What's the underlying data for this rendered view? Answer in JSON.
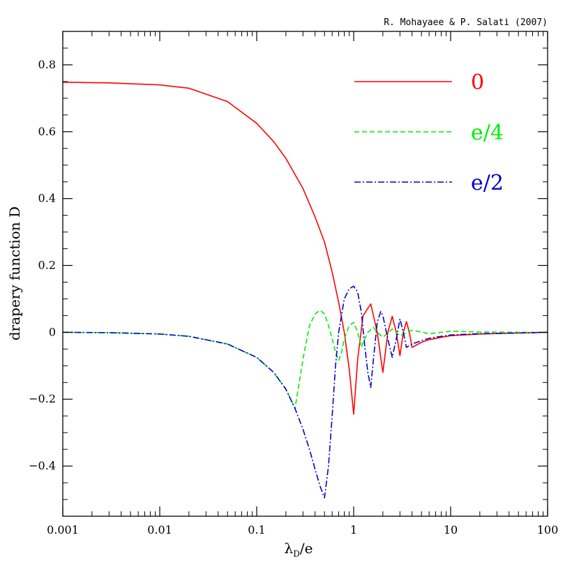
{
  "chart_data": {
    "type": "line",
    "credit": "R. Mohayaee & P. Salati (2007)",
    "xlabel": {
      "main": "λ",
      "sub": "D",
      "rest": "/e"
    },
    "ylabel": "drapery function D",
    "xscale": "log",
    "xlim": [
      0.001,
      100
    ],
    "ylim": [
      -0.55,
      0.9
    ],
    "xticks": [
      {
        "value": 0.001,
        "label": "0.001"
      },
      {
        "value": 0.01,
        "label": "0.01"
      },
      {
        "value": 0.1,
        "label": "0.1"
      },
      {
        "value": 1,
        "label": "1"
      },
      {
        "value": 10,
        "label": "10"
      },
      {
        "value": 100,
        "label": "100"
      }
    ],
    "yticks": [
      {
        "value": 0.8,
        "label": "0.8"
      },
      {
        "value": 0.6,
        "label": "0.6"
      },
      {
        "value": 0.4,
        "label": "0.4"
      },
      {
        "value": 0.2,
        "label": "0.2"
      },
      {
        "value": 0,
        "label": "0"
      },
      {
        "value": -0.2,
        "label": "−0.2"
      },
      {
        "value": -0.4,
        "label": "−0.4"
      }
    ],
    "grid": false,
    "legend_position": "top-right",
    "series": [
      {
        "name": "0",
        "color": "#ff0000",
        "dash": "solid",
        "x": [
          0.001,
          0.003,
          0.01,
          0.02,
          0.05,
          0.1,
          0.15,
          0.2,
          0.3,
          0.4,
          0.5,
          0.6,
          0.7,
          0.8,
          0.9,
          1.0,
          1.1,
          1.25,
          1.5,
          1.75,
          2.0,
          2.25,
          2.5,
          2.75,
          3.0,
          3.25,
          3.5,
          3.75,
          4.0,
          5.0,
          6.0,
          8.0,
          10.0,
          20.0,
          50.0,
          100.0
        ],
        "y": [
          0.748,
          0.746,
          0.74,
          0.73,
          0.69,
          0.625,
          0.57,
          0.52,
          0.43,
          0.345,
          0.27,
          0.18,
          0.09,
          0.0,
          -0.11,
          -0.245,
          -0.08,
          0.05,
          0.085,
          0.0,
          -0.12,
          0.0,
          0.048,
          0.0,
          -0.07,
          0.0,
          0.032,
          0.0,
          -0.045,
          -0.03,
          -0.022,
          -0.015,
          -0.01,
          -0.005,
          -0.002,
          0.0
        ]
      },
      {
        "name": "e/4",
        "color": "#00ee00",
        "dash": "dashed",
        "x": [
          0.001,
          0.003,
          0.01,
          0.02,
          0.05,
          0.1,
          0.15,
          0.2,
          0.25,
          0.251,
          0.3,
          0.35,
          0.4,
          0.45,
          0.5,
          0.55,
          0.6,
          0.65,
          0.7,
          0.75,
          0.8,
          0.9,
          1.0,
          1.1,
          1.2,
          1.25,
          1.4,
          1.6,
          1.75,
          2.0,
          2.5,
          3.0,
          4.0,
          6.0,
          10.0,
          20.0,
          50.0,
          100.0
        ],
        "y": [
          0.0,
          -0.001,
          -0.005,
          -0.012,
          -0.035,
          -0.075,
          -0.12,
          -0.17,
          -0.23,
          -0.22,
          -0.08,
          0.02,
          0.055,
          0.066,
          0.055,
          0.02,
          -0.02,
          -0.06,
          -0.085,
          -0.06,
          -0.02,
          0.02,
          0.03,
          0.0,
          -0.045,
          -0.03,
          0.0,
          0.015,
          0.0,
          -0.015,
          0.01,
          -0.01,
          0.006,
          -0.004,
          0.003,
          0.001,
          0.0,
          0.0
        ]
      },
      {
        "name": "e/2",
        "color": "#0000cc",
        "dash": "dashdot",
        "x": [
          0.001,
          0.003,
          0.01,
          0.02,
          0.05,
          0.1,
          0.15,
          0.2,
          0.25,
          0.3,
          0.35,
          0.4,
          0.45,
          0.5,
          0.55,
          0.6,
          0.65,
          0.7,
          0.8,
          0.9,
          1.0,
          1.1,
          1.2,
          1.3,
          1.4,
          1.5,
          1.6,
          1.75,
          1.9,
          2.0,
          2.25,
          2.5,
          2.75,
          3.0,
          3.25,
          3.5,
          4.0,
          5.0,
          6.0,
          8.0,
          10.0,
          20.0,
          50.0,
          100.0
        ],
        "y": [
          0.0,
          -0.001,
          -0.005,
          -0.012,
          -0.035,
          -0.075,
          -0.12,
          -0.17,
          -0.23,
          -0.29,
          -0.35,
          -0.41,
          -0.46,
          -0.495,
          -0.4,
          -0.25,
          -0.1,
          0.0,
          0.1,
          0.13,
          0.138,
          0.12,
          0.06,
          -0.04,
          -0.12,
          -0.165,
          -0.08,
          0.03,
          0.062,
          0.05,
          -0.02,
          -0.075,
          -0.02,
          0.04,
          0.0,
          -0.045,
          -0.035,
          -0.025,
          -0.018,
          -0.012,
          -0.008,
          -0.004,
          -0.002,
          0.0
        ]
      }
    ]
  }
}
